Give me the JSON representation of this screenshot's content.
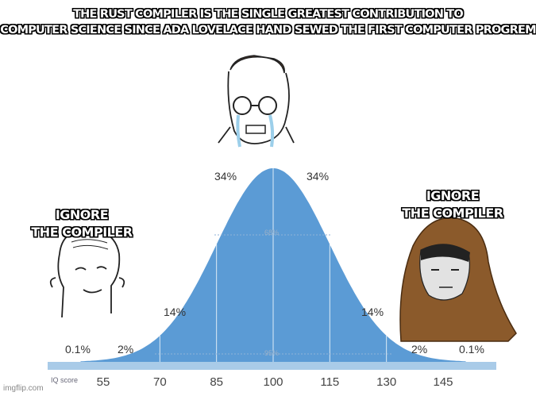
{
  "meme": {
    "top_text_line1": "THE RUST COMPILER IS THE SINGLE GREATEST CONTRIBUTION TO",
    "top_text_line2": "COMPUTER SCIENCE SINCE ADA LOVELACE HAND SEWED THE FIRST COMPUTER PROGREM",
    "left_label_line1": "IGNORE",
    "left_label_line2": "THE COMPILER",
    "right_label_line1": "IGNORE",
    "right_label_line2": "THE COMPILER"
  },
  "chart_data": {
    "type": "area",
    "xlabel": "IQ score",
    "ticks": [
      55,
      70,
      85,
      100,
      115,
      130,
      145
    ],
    "mean": 100,
    "sd": 15,
    "segment_labels": {
      "far_left": "0.1%",
      "left_2": "2%",
      "left_14": "14%",
      "left_34": "34%",
      "right_34": "34%",
      "right_14": "14%",
      "right_2": "2%",
      "far_right": "0.1%",
      "inner": "68%",
      "outer": "95%"
    },
    "colors": {
      "curve": "#5b9bd5",
      "band": "#a9cbe8"
    }
  },
  "watermark": "imgflip.com"
}
